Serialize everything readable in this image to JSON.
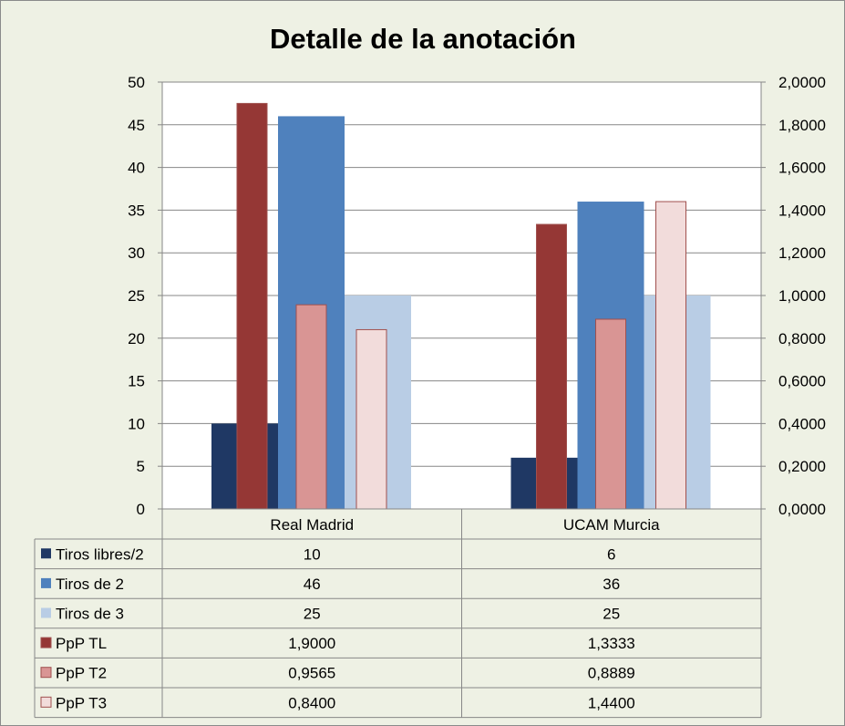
{
  "chart_data": {
    "type": "bar",
    "title": "Detalle de la anotación",
    "categories": [
      "Real Madrid",
      "UCAM Murcia"
    ],
    "primary_axis": {
      "ylim": [
        0,
        50
      ],
      "ticks": [
        "0",
        "5",
        "10",
        "15",
        "20",
        "25",
        "30",
        "35",
        "40",
        "45",
        "50"
      ]
    },
    "secondary_axis": {
      "ylim": [
        0,
        2
      ],
      "ticks": [
        "0,0000",
        "0,2000",
        "0,4000",
        "0,6000",
        "0,8000",
        "1,0000",
        "1,2000",
        "1,4000",
        "1,6000",
        "1,8000",
        "2,0000"
      ]
    },
    "series": [
      {
        "name": "Tiros libres/2",
        "axis": "primary",
        "values": [
          10,
          6
        ],
        "labels": [
          "10",
          "6"
        ],
        "color": "#1f3864"
      },
      {
        "name": "Tiros de 2",
        "axis": "primary",
        "values": [
          46,
          36
        ],
        "labels": [
          "46",
          "36"
        ],
        "color": "#4f81bd"
      },
      {
        "name": "Tiros de 3",
        "axis": "primary",
        "values": [
          25,
          25
        ],
        "labels": [
          "25",
          "25"
        ],
        "color": "#b9cde5"
      },
      {
        "name": "PpP TL",
        "axis": "secondary",
        "values": [
          1.9,
          1.3333
        ],
        "labels": [
          "1,9000",
          "1,3333"
        ],
        "color": "#953735"
      },
      {
        "name": "PpP T2",
        "axis": "secondary",
        "values": [
          0.9565,
          0.8889
        ],
        "labels": [
          "0,9565",
          "0,8889"
        ],
        "color": "#d99594"
      },
      {
        "name": "PpP T3",
        "axis": "secondary",
        "values": [
          0.84,
          1.44
        ],
        "labels": [
          "0,8400",
          "1,4400"
        ],
        "color": "#f2dcdb"
      }
    ],
    "data_table": true,
    "grid": true
  }
}
